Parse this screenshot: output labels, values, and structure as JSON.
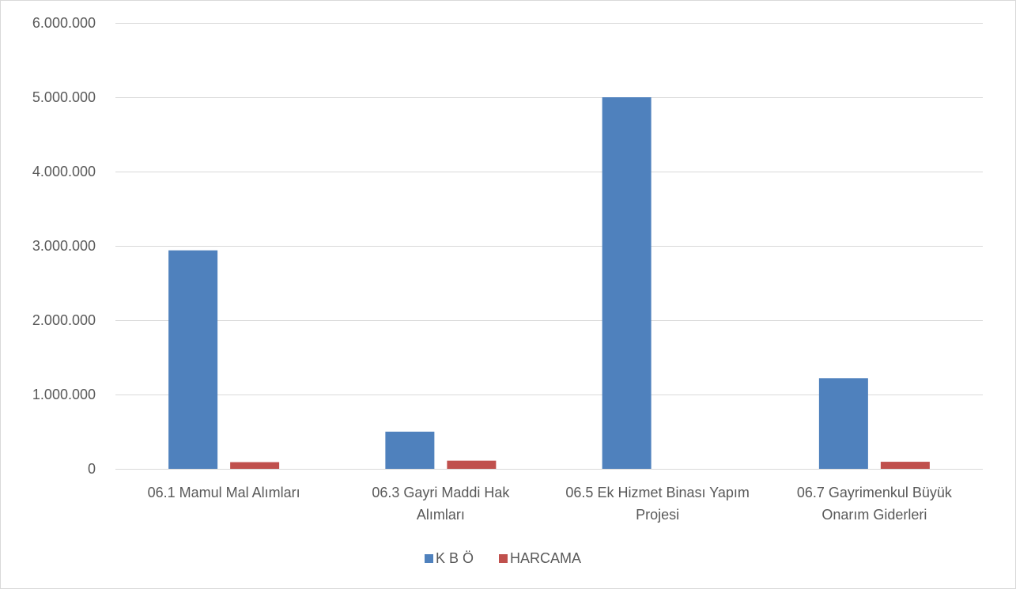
{
  "chart_data": {
    "type": "bar",
    "title": "",
    "xlabel": "",
    "ylabel": "",
    "ylim": [
      0,
      6000000
    ],
    "yticks": [
      0,
      1000000,
      2000000,
      3000000,
      4000000,
      5000000,
      6000000
    ],
    "ytick_labels": [
      "0",
      "1.000.000",
      "2.000.000",
      "3.000.000",
      "4.000.000",
      "5.000.000",
      "6.000.000"
    ],
    "grid": true,
    "legend_position": "bottom",
    "categories": [
      [
        "06.1 Mamul Mal Alımları"
      ],
      [
        "06.3 Gayri Maddi Hak",
        "Alımları"
      ],
      [
        "06.5 Ek Hizmet Binası Yapım",
        "Projesi"
      ],
      [
        "06.7 Gayrimenkul Büyük",
        "Onarım Giderleri"
      ]
    ],
    "series": [
      {
        "name": "K B Ö",
        "color": "#4f81bd",
        "values": [
          2940000,
          500000,
          5000000,
          1220000
        ]
      },
      {
        "name": "HARCAMA",
        "color": "#c0504d",
        "values": [
          90000,
          110000,
          0,
          95000
        ]
      }
    ]
  }
}
